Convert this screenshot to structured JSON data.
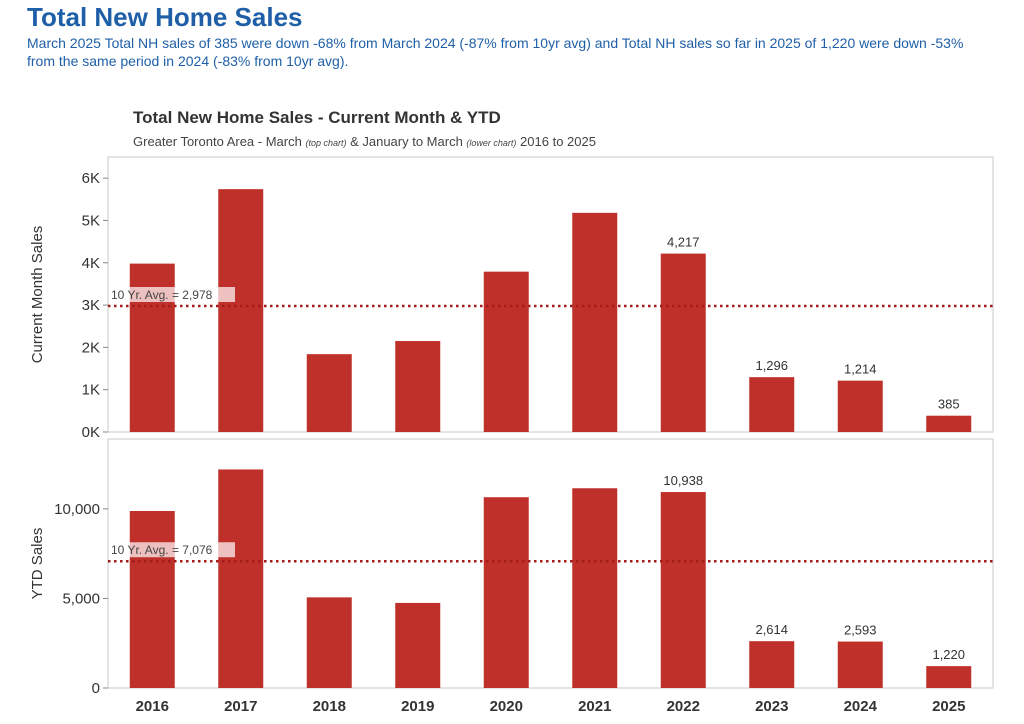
{
  "page": {
    "title": "Total New Home Sales",
    "summary": "March 2025 Total NH sales of 385 were down -68% from March 2024 (-87% from 10yr avg) and Total NH sales so far in 2025 of 1,220 were down -53% from the same period in 2024 (-83% from 10yr avg)."
  },
  "chart": {
    "title": "Total New Home Sales - Current Month & YTD",
    "subtitle_prefix": "Greater Toronto Area - March ",
    "subtitle_top_note": "(top chart)",
    "subtitle_middle": " & January to March ",
    "subtitle_lower_note": "(lower chart)",
    "subtitle_suffix": " 2016 to 2025"
  },
  "colors": {
    "bar": "#c0302a",
    "avg_line": "#a31b1b",
    "title": "#1f5fa8",
    "frame": "#c8c8c8"
  },
  "chart_data": [
    {
      "type": "bar",
      "title": "Current Month",
      "categories": [
        "2016",
        "2017",
        "2018",
        "2019",
        "2020",
        "2021",
        "2022",
        "2023",
        "2024",
        "2025"
      ],
      "values": [
        3980,
        5740,
        1840,
        2150,
        3790,
        5180,
        4217,
        1296,
        1214,
        385
      ],
      "data_labels": [
        "",
        "",
        "",
        "",
        "",
        "",
        "4,217",
        "1,296",
        "1,214",
        "385"
      ],
      "ylabel": "Current Month Sales",
      "ylim": [
        0,
        6500
      ],
      "yticks": [
        0,
        1000,
        2000,
        3000,
        4000,
        5000,
        6000
      ],
      "ytick_labels": [
        "0K",
        "1K",
        "2K",
        "3K",
        "4K",
        "5K",
        "6K"
      ],
      "reference_line": {
        "value": 2978,
        "label": "10 Yr. Avg. = 2,978"
      },
      "grid": false
    },
    {
      "type": "bar",
      "title": "YTD",
      "categories": [
        "2016",
        "2017",
        "2018",
        "2019",
        "2020",
        "2021",
        "2022",
        "2023",
        "2024",
        "2025"
      ],
      "values": [
        9880,
        12200,
        5060,
        4750,
        10650,
        11150,
        10938,
        2614,
        2593,
        1220
      ],
      "data_labels": [
        "",
        "",
        "",
        "",
        "",
        "",
        "10,938",
        "2,614",
        "2,593",
        "1,220"
      ],
      "ylabel": "YTD Sales",
      "ylim": [
        0,
        13900
      ],
      "yticks": [
        0,
        5000,
        10000
      ],
      "ytick_labels": [
        "0",
        "5,000",
        "10,000"
      ],
      "reference_line": {
        "value": 7076,
        "label": "10 Yr. Avg. = 7,076"
      },
      "grid": false
    }
  ]
}
